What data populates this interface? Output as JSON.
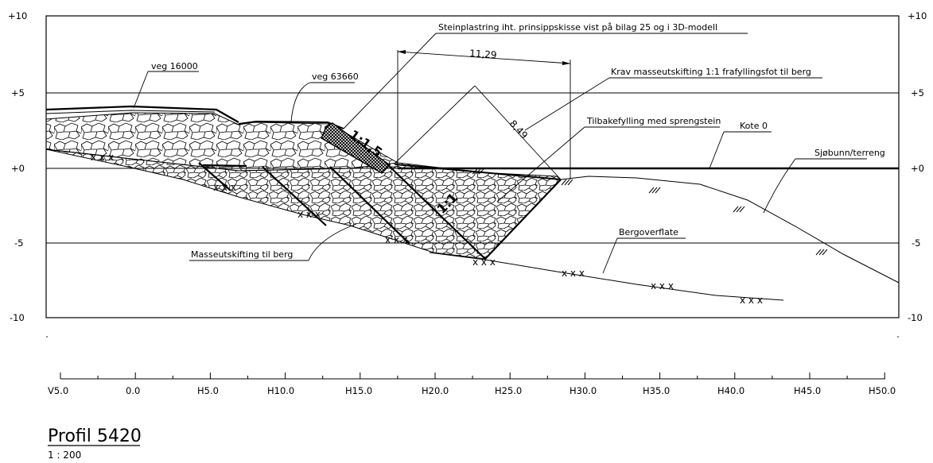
{
  "elevation_labels": {
    "left": [
      "+10",
      "+5",
      "+0",
      "-5",
      "-10"
    ],
    "right": [
      "+10",
      "+5",
      "+0",
      "-5",
      "-10"
    ]
  },
  "station_labels": [
    "V5.0",
    "0.0",
    "H5.0",
    "H10.0",
    "H15.0",
    "H20.0",
    "H25.0",
    "H30.0",
    "H35.0",
    "H40.0",
    "H45.0",
    "H50.0"
  ],
  "annotations": {
    "steinplastring": "Steinplastring iht. prinsippskisse vist på  bilag 25 og i 3D-modell",
    "dimension_width": "11,29",
    "veg_16000": "veg 16000",
    "veg_63660": "veg 63660",
    "krav": "Krav masseutskifting 1:1 frafyllingsfot til berg",
    "slope_dimension": "8,49",
    "tilbakefylling": "Tilbakefylling med sprengstein",
    "kote": "Kote 0",
    "sjobunn": "Sjøbunn/terreng",
    "slope_ratio_1": "1:1,5",
    "slope_ratio_2": "1:1",
    "bergoverflate": "Bergoverflate",
    "masseutskifting": "Masseutskifting til berg",
    "rock_marks": "x x x"
  },
  "title": {
    "profile": "Profil  5420",
    "scale": "1 : 200"
  }
}
